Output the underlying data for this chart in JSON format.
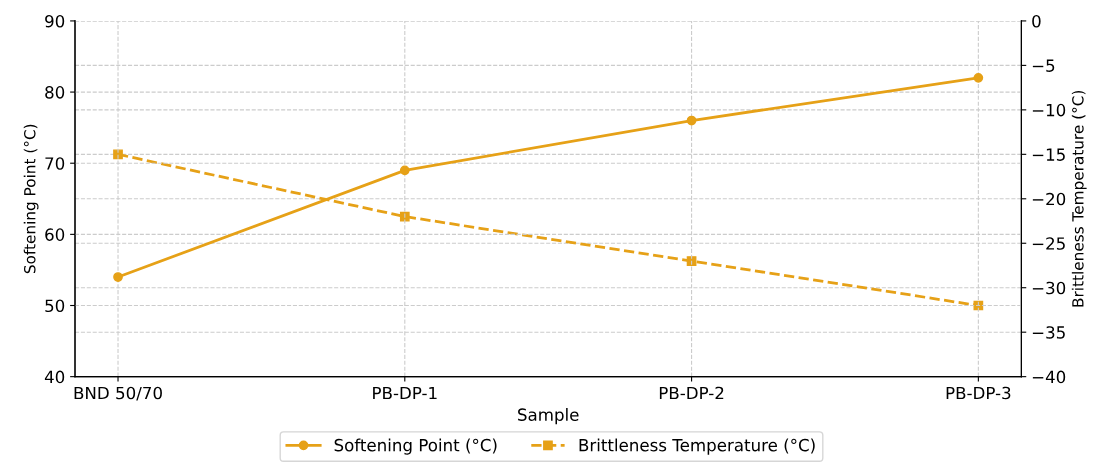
{
  "chart_data": {
    "type": "line",
    "xlabel": "Sample",
    "ylabel": "Softening Point (°C)",
    "y2label": "Brittleness Temperature (°C)",
    "categories": [
      "BND 50/70",
      "PB-DP-1",
      "PB-DP-2",
      "PB-DP-3"
    ],
    "series": [
      {
        "name": "Softening Point (°C)",
        "color": "#e6a117",
        "values": [
          54,
          69,
          76,
          82
        ],
        "marker": "circle",
        "line_style": "solid"
      },
      {
        "name": "Brittleness Temperature (°C)",
        "color": "#e6a117",
        "values": [
          -15,
          -22,
          -27,
          -32
        ],
        "marker": "square",
        "line_style": "dashed",
        "axis": "y2"
      }
    ],
    "ylim": [
      40,
      90
    ],
    "yticks": [
      40,
      50,
      60,
      70,
      80,
      90
    ],
    "y2lim": [
      -40,
      0
    ],
    "y2ticks": [
      -40,
      -35,
      -30,
      -25,
      -20,
      -15,
      -10,
      -5,
      0
    ],
    "grid": true,
    "legend": "bottom"
  }
}
